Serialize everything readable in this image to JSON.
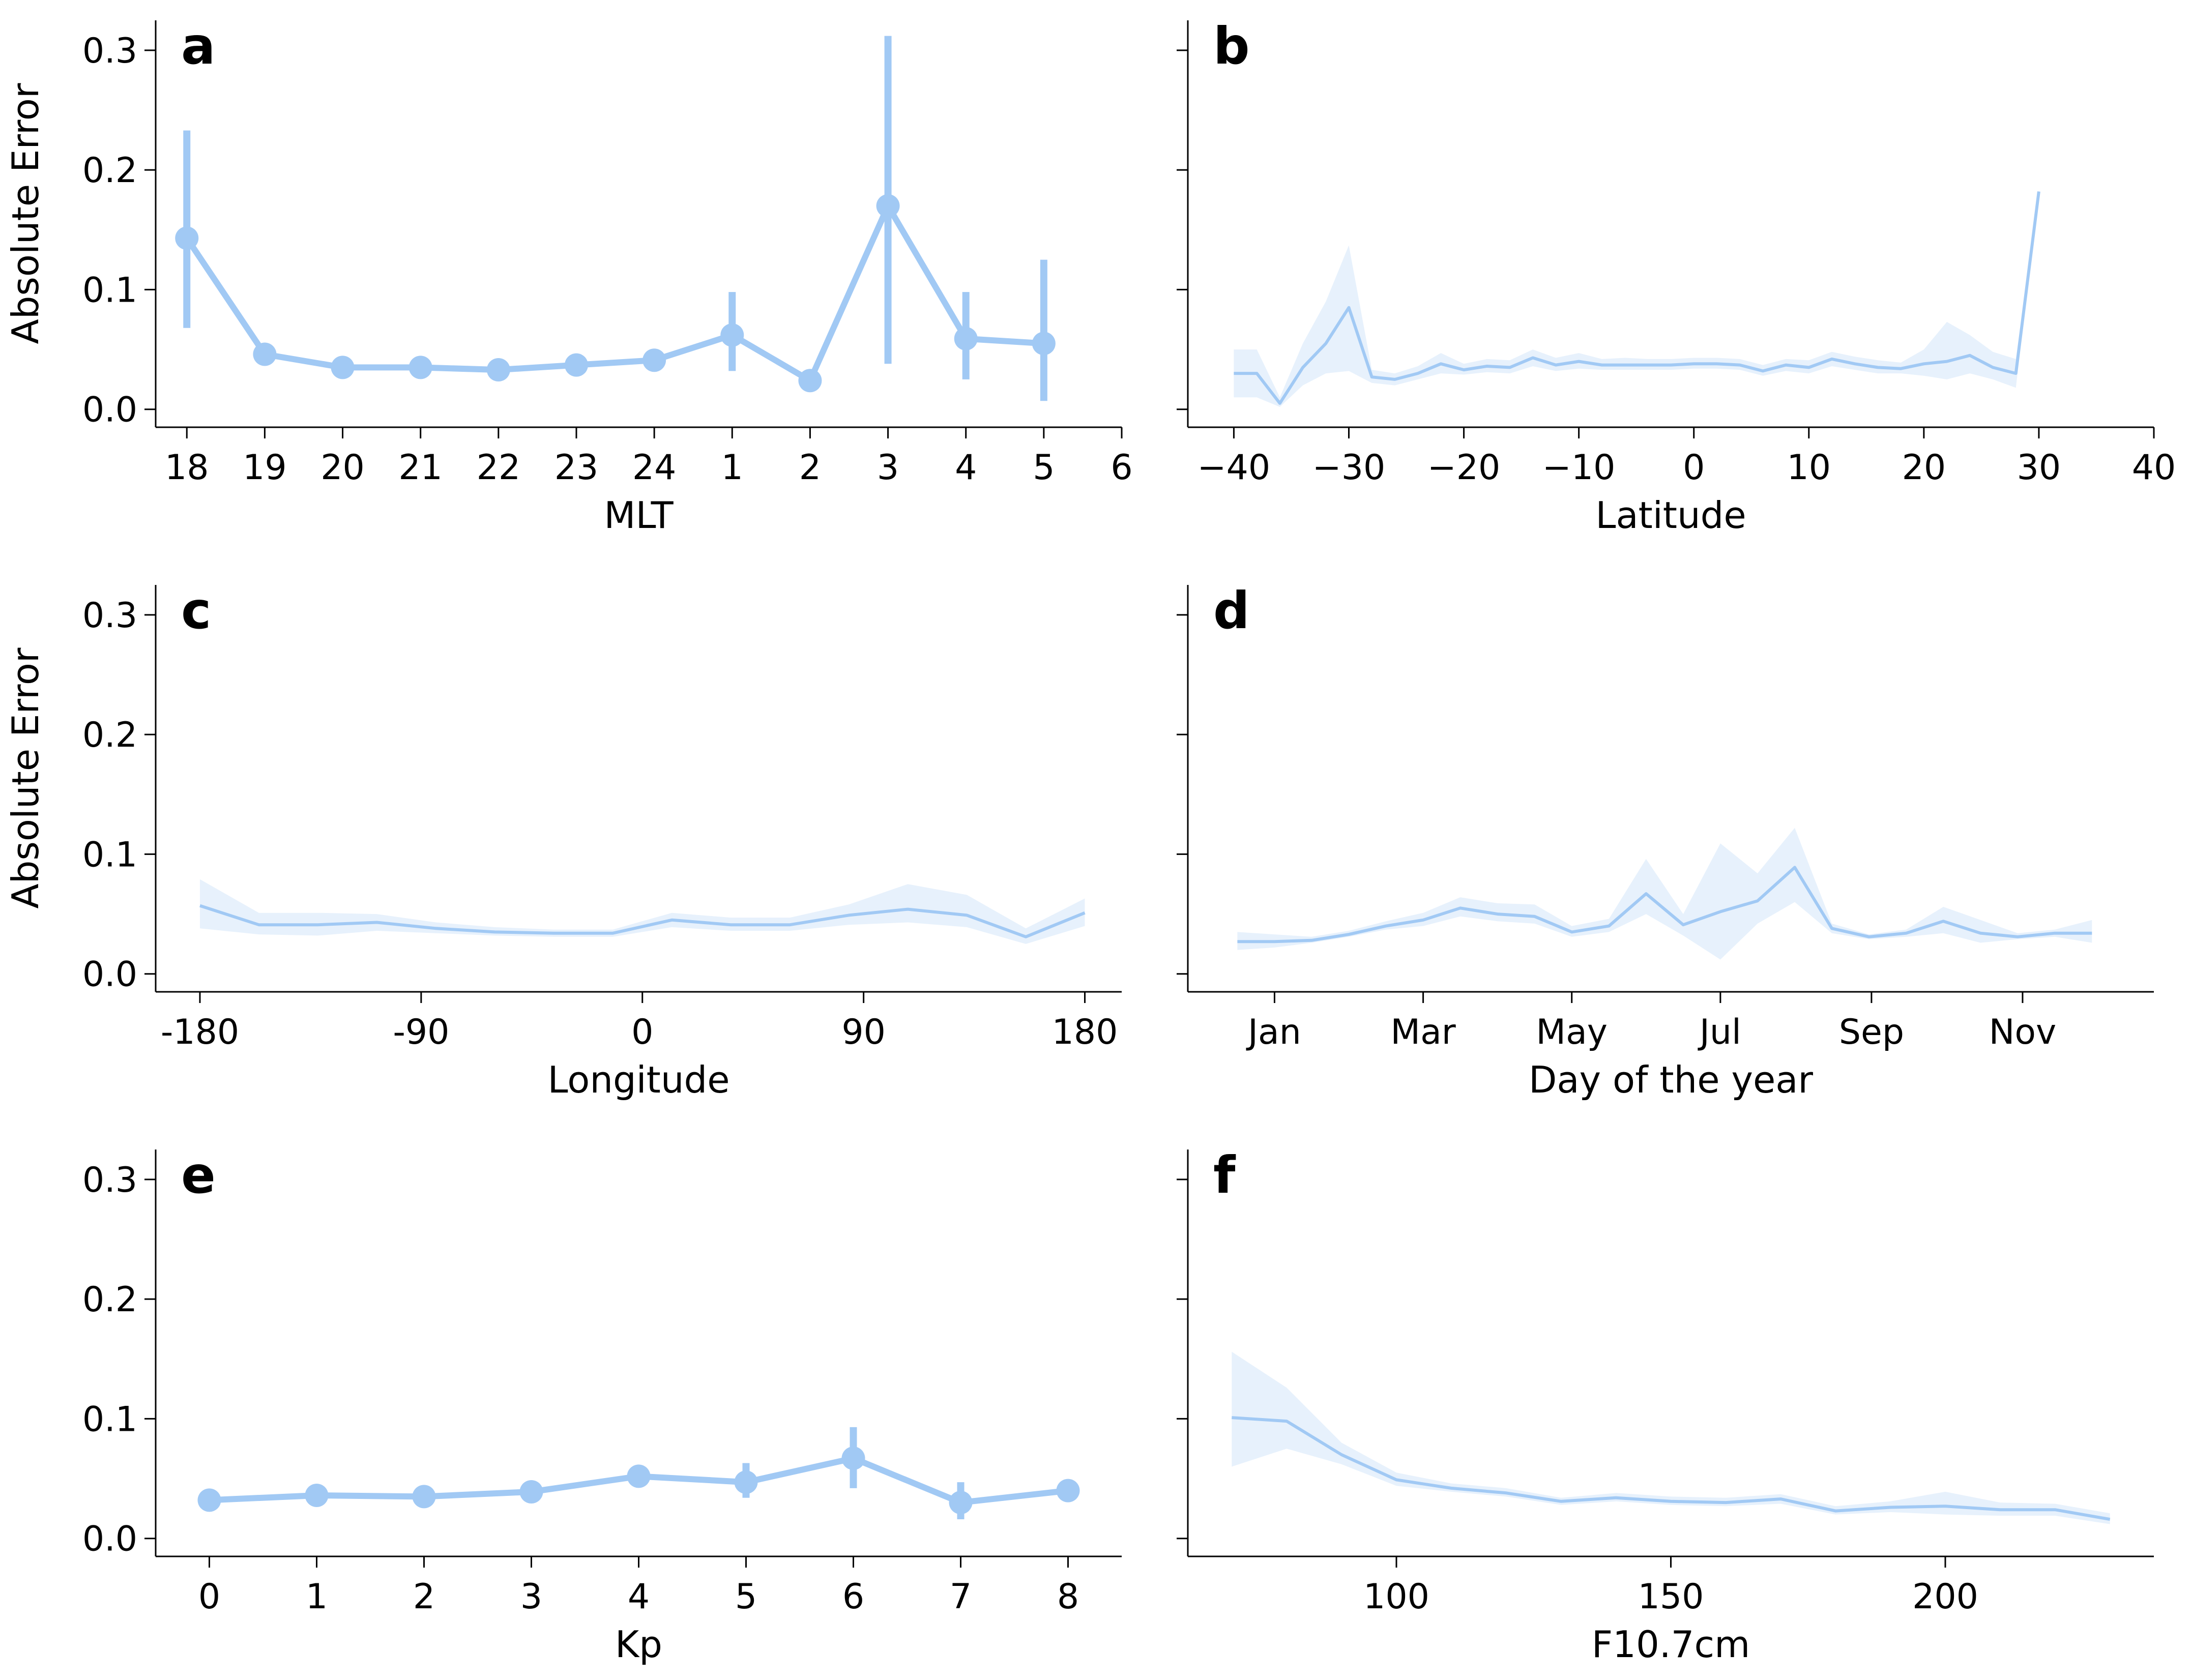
{
  "style": {
    "line_color": "#a1c9f4",
    "band_color": "#a1c9f4",
    "axis_color": "#000000"
  },
  "chart_data": [
    {
      "panel": "a",
      "type": "line",
      "errorbars": true,
      "xlabel": "MLT",
      "ylabel": "Absolute Error",
      "xlim": [
        -0.4,
        12
      ],
      "ylim": [
        -0.015,
        0.325
      ],
      "x_ticks": [
        0,
        1,
        2,
        3,
        4,
        5,
        6,
        7,
        8,
        9,
        10,
        11,
        12
      ],
      "x_tick_labels": [
        "18",
        "19",
        "20",
        "21",
        "22",
        "23",
        "24",
        "1",
        "2",
        "3",
        "4",
        "5",
        "6"
      ],
      "y_ticks": [
        0.0,
        0.1,
        0.2,
        0.3
      ],
      "y_tick_labels": [
        "0.0",
        "0.1",
        "0.2",
        "0.3"
      ],
      "series": [
        {
          "name": "MLT",
          "x": [
            0,
            1,
            2,
            3,
            4,
            5,
            6,
            7,
            8,
            9,
            10,
            11
          ],
          "y": [
            0.143,
            0.046,
            0.035,
            0.035,
            0.033,
            0.037,
            0.041,
            0.062,
            0.024,
            0.17,
            0.059,
            0.055
          ],
          "err_low": [
            0.068,
            0.042,
            0.033,
            0.033,
            0.031,
            0.035,
            0.038,
            0.032,
            0.022,
            0.038,
            0.025,
            0.007
          ],
          "err_high": [
            0.233,
            0.05,
            0.038,
            0.038,
            0.035,
            0.04,
            0.045,
            0.098,
            0.027,
            0.312,
            0.098,
            0.125
          ]
        }
      ]
    },
    {
      "panel": "b",
      "type": "line",
      "band": true,
      "xlabel": "Latitude",
      "ylabel": "",
      "xlim": [
        -44,
        40
      ],
      "ylim": [
        -0.015,
        0.325
      ],
      "x_ticks": [
        -40,
        -30,
        -20,
        -10,
        0,
        10,
        20,
        30,
        40
      ],
      "x_tick_labels": [
        "−40",
        "−30",
        "−20",
        "−10",
        "0",
        "10",
        "20",
        "30",
        "40"
      ],
      "y_ticks": [
        0.0,
        0.1,
        0.2,
        0.3
      ],
      "y_tick_labels": [
        "",
        "",
        "",
        ""
      ],
      "series": [
        {
          "name": "Latitude",
          "x": [
            -40,
            -38,
            -36,
            -34,
            -32,
            -30,
            -28,
            -26,
            -24,
            -22,
            -20,
            -18,
            -16,
            -14,
            -12,
            -10,
            -8,
            -6,
            -4,
            -2,
            0,
            2,
            4,
            6,
            8,
            10,
            12,
            14,
            16,
            18,
            20,
            22,
            24,
            26,
            28,
            30
          ],
          "y": [
            0.03,
            0.03,
            0.005,
            0.035,
            0.055,
            0.085,
            0.027,
            0.025,
            0.03,
            0.038,
            0.033,
            0.036,
            0.035,
            0.043,
            0.037,
            0.04,
            0.037,
            0.037,
            0.037,
            0.037,
            0.038,
            0.038,
            0.037,
            0.032,
            0.037,
            0.035,
            0.042,
            0.038,
            0.035,
            0.034,
            0.038,
            0.04,
            0.045,
            0.035,
            0.03,
            0.182
          ],
          "lower": [
            0.01,
            0.01,
            0.002,
            0.02,
            0.03,
            0.032,
            0.022,
            0.02,
            0.025,
            0.03,
            0.029,
            0.031,
            0.03,
            0.036,
            0.032,
            0.034,
            0.033,
            0.033,
            0.033,
            0.033,
            0.034,
            0.034,
            0.033,
            0.028,
            0.032,
            0.03,
            0.036,
            0.033,
            0.03,
            0.03,
            0.028,
            0.025,
            0.03,
            0.025,
            0.018,
            0.182
          ],
          "upper": [
            0.05,
            0.05,
            0.01,
            0.055,
            0.09,
            0.137,
            0.033,
            0.03,
            0.036,
            0.047,
            0.038,
            0.042,
            0.041,
            0.05,
            0.043,
            0.047,
            0.042,
            0.043,
            0.042,
            0.042,
            0.043,
            0.043,
            0.042,
            0.037,
            0.042,
            0.041,
            0.048,
            0.044,
            0.041,
            0.039,
            0.05,
            0.073,
            0.062,
            0.048,
            0.042,
            0.182
          ]
        }
      ]
    },
    {
      "panel": "c",
      "type": "line",
      "band": true,
      "xlabel": "Longitude",
      "ylabel": "Absolute Error",
      "xlim": [
        -198,
        195
      ],
      "ylim": [
        -0.015,
        0.325
      ],
      "x_ticks": [
        -180,
        -90,
        0,
        90,
        180
      ],
      "x_tick_labels": [
        "-180",
        "-90",
        "0",
        "90",
        "180"
      ],
      "y_ticks": [
        0.0,
        0.1,
        0.2,
        0.3
      ],
      "y_tick_labels": [
        "0.0",
        "0.1",
        "0.2",
        "0.3"
      ],
      "series": [
        {
          "name": "Longitude",
          "x": [
            -180,
            -156,
            -132,
            -108,
            -84,
            -60,
            -36,
            -12,
            12,
            36,
            60,
            84,
            108,
            132,
            156,
            180
          ],
          "y": [
            0.057,
            0.041,
            0.041,
            0.043,
            0.038,
            0.035,
            0.034,
            0.034,
            0.045,
            0.041,
            0.041,
            0.049,
            0.054,
            0.049,
            0.031,
            0.051
          ],
          "lower": [
            0.038,
            0.033,
            0.032,
            0.036,
            0.034,
            0.032,
            0.031,
            0.031,
            0.039,
            0.036,
            0.036,
            0.041,
            0.043,
            0.039,
            0.025,
            0.04
          ],
          "upper": [
            0.079,
            0.051,
            0.051,
            0.05,
            0.043,
            0.039,
            0.037,
            0.037,
            0.051,
            0.047,
            0.047,
            0.058,
            0.075,
            0.066,
            0.038,
            0.063
          ]
        }
      ]
    },
    {
      "panel": "d",
      "type": "line",
      "band": true,
      "xlabel": "Day of the year",
      "ylabel": "",
      "xlim": [
        -20,
        370
      ],
      "ylim": [
        -0.015,
        0.325
      ],
      "x_ticks": [
        15,
        75,
        135,
        195,
        256,
        317
      ],
      "x_tick_labels": [
        "Jan",
        "Mar",
        "May",
        "Jul",
        "Sep",
        "Nov"
      ],
      "y_ticks": [
        0.0,
        0.1,
        0.2,
        0.3
      ],
      "y_tick_labels": [
        "",
        "",
        "",
        ""
      ],
      "series": [
        {
          "name": "Day of the year",
          "x": [
            0,
            15,
            30,
            45,
            60,
            75,
            90,
            105,
            120,
            135,
            150,
            165,
            180,
            195,
            210,
            225,
            240,
            255,
            270,
            285,
            300,
            315,
            330,
            345
          ],
          "y": [
            0.027,
            0.027,
            0.028,
            0.033,
            0.04,
            0.045,
            0.055,
            0.05,
            0.048,
            0.035,
            0.04,
            0.067,
            0.041,
            0.052,
            0.061,
            0.089,
            0.038,
            0.031,
            0.034,
            0.044,
            0.034,
            0.031,
            0.034,
            0.034
          ],
          "lower": [
            0.02,
            0.022,
            0.026,
            0.031,
            0.037,
            0.04,
            0.048,
            0.044,
            0.042,
            0.031,
            0.035,
            0.05,
            0.032,
            0.012,
            0.042,
            0.06,
            0.034,
            0.029,
            0.031,
            0.034,
            0.026,
            0.029,
            0.031,
            0.026
          ],
          "upper": [
            0.035,
            0.033,
            0.031,
            0.036,
            0.044,
            0.051,
            0.064,
            0.059,
            0.058,
            0.04,
            0.046,
            0.096,
            0.05,
            0.109,
            0.084,
            0.122,
            0.042,
            0.033,
            0.037,
            0.056,
            0.045,
            0.034,
            0.037,
            0.045
          ]
        }
      ]
    },
    {
      "panel": "e",
      "type": "line",
      "errorbars": true,
      "xlabel": "Kp",
      "ylabel": "",
      "xlim": [
        -0.5,
        8.5
      ],
      "ylim": [
        -0.015,
        0.325
      ],
      "x_ticks": [
        0,
        1,
        2,
        3,
        4,
        5,
        6,
        7,
        8
      ],
      "x_tick_labels": [
        "0",
        "1",
        "2",
        "3",
        "4",
        "5",
        "6",
        "7",
        "8"
      ],
      "y_ticks": [
        0.0,
        0.1,
        0.2,
        0.3
      ],
      "y_tick_labels": [
        "0.0",
        "0.1",
        "0.2",
        "0.3"
      ],
      "series": [
        {
          "name": "Kp",
          "x": [
            0,
            1,
            2,
            3,
            4,
            5,
            6,
            7,
            8
          ],
          "y": [
            0.032,
            0.036,
            0.035,
            0.039,
            0.052,
            0.047,
            0.067,
            0.03,
            0.04
          ],
          "err_low": [
            0.031,
            0.034,
            0.033,
            0.037,
            0.049,
            0.034,
            0.042,
            0.016,
            0.037
          ],
          "err_high": [
            0.034,
            0.038,
            0.037,
            0.041,
            0.056,
            0.063,
            0.093,
            0.047,
            0.044
          ]
        }
      ]
    },
    {
      "panel": "f",
      "type": "line",
      "band": true,
      "xlabel": "F10.7cm",
      "ylabel": "",
      "xlim": [
        62,
        238
      ],
      "ylim": [
        -0.015,
        0.325
      ],
      "x_ticks": [
        100,
        150,
        200
      ],
      "x_tick_labels": [
        "100",
        "150",
        "200"
      ],
      "y_ticks": [
        0.0,
        0.1,
        0.2,
        0.3
      ],
      "y_tick_labels": [
        "",
        "",
        "",
        ""
      ],
      "series": [
        {
          "name": "F10.7cm",
          "x": [
            70,
            80,
            90,
            100,
            110,
            120,
            130,
            140,
            150,
            160,
            170,
            180,
            190,
            200,
            210,
            220,
            230
          ],
          "y": [
            0.101,
            0.098,
            0.07,
            0.049,
            0.042,
            0.038,
            0.031,
            0.034,
            0.031,
            0.03,
            0.033,
            0.023,
            0.026,
            0.027,
            0.024,
            0.024,
            0.016
          ],
          "lower": [
            0.06,
            0.075,
            0.062,
            0.044,
            0.039,
            0.035,
            0.028,
            0.031,
            0.028,
            0.027,
            0.029,
            0.02,
            0.022,
            0.02,
            0.019,
            0.019,
            0.012
          ],
          "upper": [
            0.156,
            0.126,
            0.08,
            0.055,
            0.046,
            0.042,
            0.034,
            0.038,
            0.035,
            0.034,
            0.037,
            0.027,
            0.031,
            0.039,
            0.03,
            0.029,
            0.021
          ]
        }
      ]
    }
  ]
}
